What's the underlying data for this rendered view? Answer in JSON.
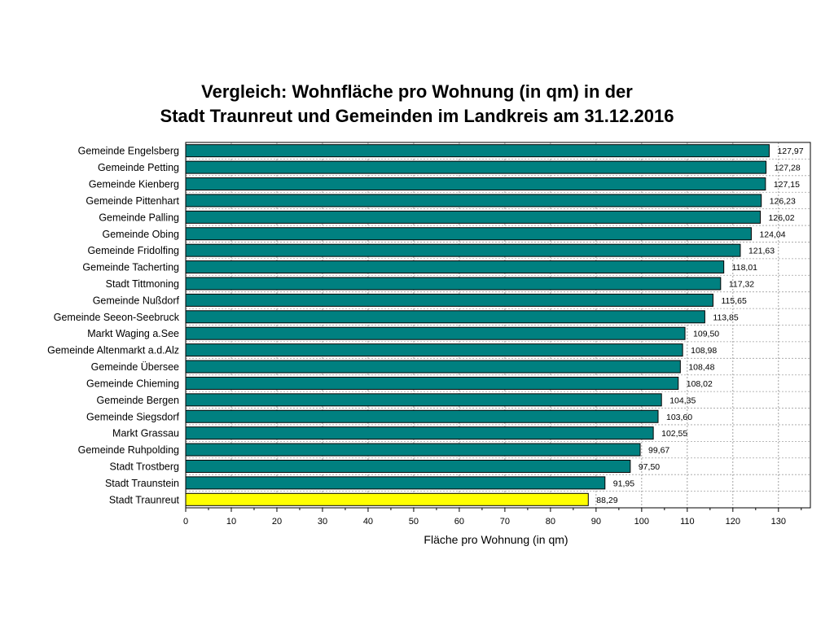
{
  "chart_data": {
    "type": "bar",
    "orientation": "horizontal",
    "title_lines": [
      "Vergleich: Wohnfläche pro Wohnung (in qm) in der",
      "Stadt Traunreut und Gemeinden im Landkreis am 31.12.2016"
    ],
    "xlabel": "Fläche pro Wohnung (in qm)",
    "ylabel": "",
    "xlim": [
      0,
      137
    ],
    "ticks": [
      0,
      10,
      20,
      30,
      40,
      50,
      60,
      70,
      80,
      90,
      100,
      110,
      120,
      130
    ],
    "grid": true,
    "categories": [
      "Gemeinde Engelsberg",
      "Gemeinde Petting",
      "Gemeinde Kienberg",
      "Gemeinde Pittenhart",
      "Gemeinde Palling",
      "Gemeinde Obing",
      "Gemeinde Fridolfing",
      "Gemeinde Tacherting",
      "Stadt Tittmoning",
      "Gemeinde Nußdorf",
      "Gemeinde Seeon-Seebruck",
      "Markt Waging a.See",
      "Gemeinde Altenmarkt a.d.Alz",
      "Gemeinde Übersee",
      "Gemeinde Chieming",
      "Gemeinde Bergen",
      "Gemeinde Siegsdorf",
      "Markt Grassau",
      "Gemeinde Ruhpolding",
      "Stadt Trostberg",
      "Stadt Traunstein",
      "Stadt Traunreut"
    ],
    "values": [
      127.97,
      127.28,
      127.15,
      126.23,
      126.02,
      124.04,
      121.63,
      118.01,
      117.32,
      115.65,
      113.85,
      109.5,
      108.98,
      108.48,
      108.02,
      104.35,
      103.6,
      102.55,
      99.67,
      97.5,
      91.95,
      88.29
    ],
    "value_labels": [
      "127,97",
      "127,28",
      "127,15",
      "126,23",
      "126,02",
      "124,04",
      "121,63",
      "118,01",
      "117,32",
      "115,65",
      "113,85",
      "109,50",
      "108,98",
      "108,48",
      "108,02",
      "104,35",
      "103,60",
      "102,55",
      "99,67",
      "97,50",
      "91,95",
      "88,29"
    ],
    "colors": {
      "bar": "#008080",
      "highlight": "#ffff00",
      "highlight_category": "Stadt Traunreut"
    }
  }
}
